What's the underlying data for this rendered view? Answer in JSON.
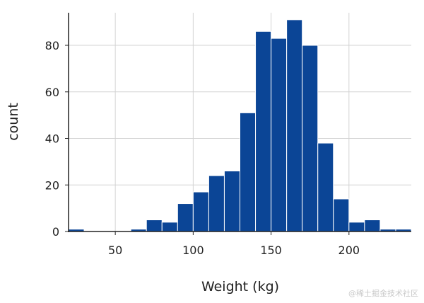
{
  "chart_data": {
    "type": "bar",
    "xlabel": "Weight (kg)",
    "ylabel": "count",
    "bar_color": "#0b4596",
    "bar_edge_color": "#ffffff",
    "grid": true,
    "grid_color": "#d3d3d3",
    "xlim": [
      20,
      240
    ],
    "ylim": [
      0,
      94
    ],
    "xticks": [
      50,
      100,
      150,
      200
    ],
    "yticks": [
      0,
      20,
      40,
      60,
      80
    ],
    "bin_width": 10,
    "bins": [
      {
        "x0": 20,
        "x1": 30,
        "count": 1
      },
      {
        "x0": 30,
        "x1": 40,
        "count": 0
      },
      {
        "x0": 40,
        "x1": 50,
        "count": 0
      },
      {
        "x0": 50,
        "x1": 60,
        "count": 0
      },
      {
        "x0": 60,
        "x1": 70,
        "count": 1
      },
      {
        "x0": 70,
        "x1": 80,
        "count": 5
      },
      {
        "x0": 80,
        "x1": 90,
        "count": 4
      },
      {
        "x0": 90,
        "x1": 100,
        "count": 12
      },
      {
        "x0": 100,
        "x1": 110,
        "count": 17
      },
      {
        "x0": 110,
        "x1": 120,
        "count": 24
      },
      {
        "x0": 120,
        "x1": 130,
        "count": 26
      },
      {
        "x0": 130,
        "x1": 140,
        "count": 51
      },
      {
        "x0": 140,
        "x1": 150,
        "count": 86
      },
      {
        "x0": 150,
        "x1": 160,
        "count": 83
      },
      {
        "x0": 160,
        "x1": 170,
        "count": 91
      },
      {
        "x0": 170,
        "x1": 180,
        "count": 80
      },
      {
        "x0": 180,
        "x1": 190,
        "count": 38
      },
      {
        "x0": 190,
        "x1": 200,
        "count": 14
      },
      {
        "x0": 200,
        "x1": 210,
        "count": 4
      },
      {
        "x0": 210,
        "x1": 220,
        "count": 5
      },
      {
        "x0": 220,
        "x1": 230,
        "count": 1
      },
      {
        "x0": 230,
        "x1": 240,
        "count": 1
      }
    ]
  },
  "watermark": "@稀土掘金技术社区"
}
